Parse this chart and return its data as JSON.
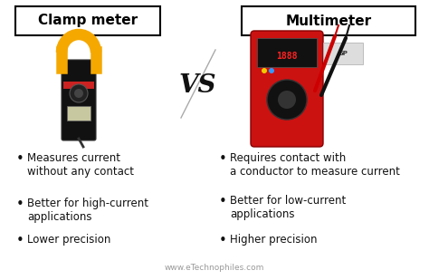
{
  "background_color": "#ffffff",
  "title_left": "Clamp meter",
  "title_right": "Multimeter",
  "vs_text": "VS",
  "title_box_color": "#ffffff",
  "title_box_edge": "#000000",
  "title_fontsize": 11,
  "title_fontweight": "bold",
  "bullet_fontsize": 8.5,
  "left_bullets": [
    "Measures current\nwithout any contact",
    "Better for high-current\napplications",
    "Lower precision"
  ],
  "right_bullets": [
    "Requires contact with\na conductor to measure current",
    "Better for low-current\napplications",
    "Higher precision"
  ],
  "vs_fontsize": 20,
  "vs_color": "#111111",
  "footer_text": "www.eTechnophiles.com",
  "footer_fontsize": 6.5,
  "footer_color": "#999999",
  "bullet_color": "#111111",
  "clamp_body_color": "#111111",
  "clamp_handle_color": "#f5a800",
  "clamp_display_color": "#c8c8a0",
  "multi_body_color": "#cc1111",
  "multi_display_color": "#111111",
  "multi_probe_red": "#cc0000",
  "multi_probe_black": "#111111"
}
